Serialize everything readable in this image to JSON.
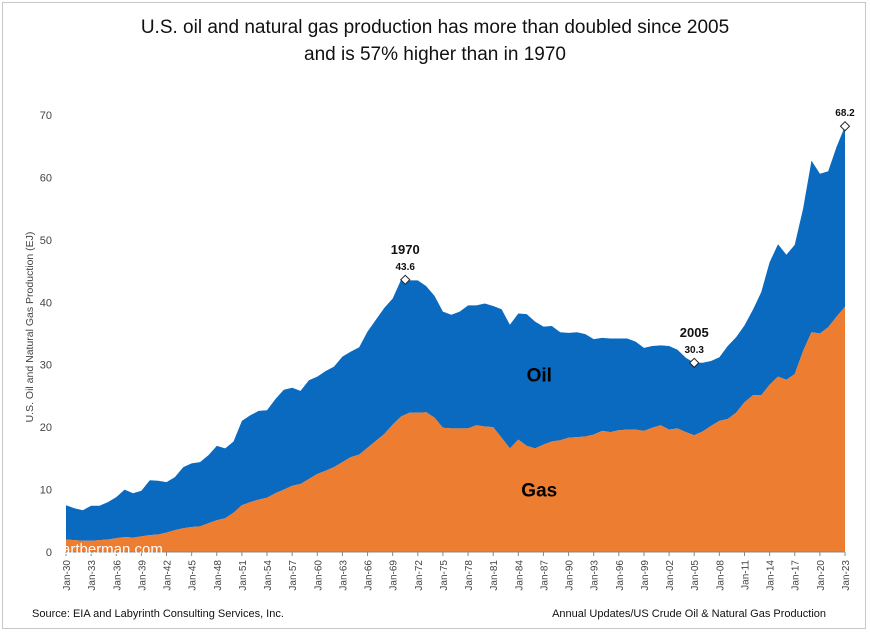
{
  "title_line1": "U.S. oil and natural gas production has more than doubled since 2005",
  "title_line2": "and is 57% higher than in 1970",
  "source": "Source: EIA and Labyrinth Consulting Services, Inc.",
  "footer_right": "Annual Updates/US Crude Oil & Natural Gas Production",
  "watermark": "artberman.com",
  "chart_data": {
    "type": "area",
    "ylabel": "U.S. Oil and Natural Gas Production (EJ)",
    "ylim": [
      0,
      70
    ],
    "yticks": [
      0,
      10,
      20,
      30,
      40,
      50,
      60,
      70
    ],
    "grid": false,
    "xticks": [
      "Jan-30",
      "Jan-33",
      "Jan-36",
      "Jan-39",
      "Jan-42",
      "Jan-45",
      "Jan-48",
      "Jan-51",
      "Jan-54",
      "Jan-57",
      "Jan-60",
      "Jan-63",
      "Jan-66",
      "Jan-69",
      "Jan-72",
      "Jan-75",
      "Jan-78",
      "Jan-81",
      "Jan-84",
      "Jan-87",
      "Jan-90",
      "Jan-93",
      "Jan-96",
      "Jan-99",
      "Jan-02",
      "Jan-05",
      "Jan-08",
      "Jan-11",
      "Jan-14",
      "Jan-17",
      "Jan-20",
      "Jan-23"
    ],
    "x": [
      1930,
      1931,
      1932,
      1933,
      1934,
      1935,
      1936,
      1937,
      1938,
      1939,
      1940,
      1941,
      1942,
      1943,
      1944,
      1945,
      1946,
      1947,
      1948,
      1949,
      1950,
      1951,
      1952,
      1953,
      1954,
      1955,
      1956,
      1957,
      1958,
      1959,
      1960,
      1961,
      1962,
      1963,
      1964,
      1965,
      1966,
      1967,
      1968,
      1969,
      1970,
      1971,
      1972,
      1973,
      1974,
      1975,
      1976,
      1977,
      1978,
      1979,
      1980,
      1981,
      1982,
      1983,
      1984,
      1985,
      1986,
      1987,
      1988,
      1989,
      1990,
      1991,
      1992,
      1993,
      1994,
      1995,
      1996,
      1997,
      1998,
      1999,
      2000,
      2001,
      2002,
      2003,
      2004,
      2005,
      2006,
      2007,
      2008,
      2009,
      2010,
      2011,
      2012,
      2013,
      2014,
      2015,
      2016,
      2017,
      2018,
      2019,
      2020,
      2021,
      2022,
      2023
    ],
    "series": [
      {
        "name": "Gas",
        "color": "#ED7D31",
        "values": [
          2.0,
          1.9,
          1.8,
          1.8,
          1.9,
          2.0,
          2.2,
          2.4,
          2.3,
          2.5,
          2.7,
          2.8,
          3.1,
          3.5,
          3.8,
          4.0,
          4.1,
          4.6,
          5.1,
          5.4,
          6.3,
          7.5,
          8.0,
          8.4,
          8.7,
          9.4,
          10.0,
          10.6,
          10.9,
          11.7,
          12.5,
          13.0,
          13.6,
          14.4,
          15.2,
          15.6,
          16.7,
          17.8,
          18.9,
          20.4,
          21.7,
          22.3,
          22.3,
          22.4,
          21.5,
          19.9,
          19.8,
          19.8,
          19.8,
          20.3,
          20.1,
          20.0,
          18.3,
          16.6,
          18.0,
          17.0,
          16.6,
          17.2,
          17.7,
          17.9,
          18.3,
          18.4,
          18.5,
          18.8,
          19.4,
          19.2,
          19.5,
          19.6,
          19.6,
          19.4,
          19.9,
          20.3,
          19.6,
          19.8,
          19.2,
          18.7,
          19.3,
          20.2,
          21.0,
          21.3,
          22.3,
          24.0,
          25.1,
          25.1,
          26.8,
          28.1,
          27.6,
          28.5,
          32.2,
          35.2,
          35.0,
          36.0,
          37.7,
          39.3
        ]
      },
      {
        "name": "Oil",
        "color": "#0A6AC0",
        "values": [
          5.5,
          5.1,
          4.9,
          5.6,
          5.5,
          6.0,
          6.6,
          7.6,
          7.1,
          7.3,
          8.8,
          8.6,
          8.1,
          8.5,
          9.8,
          10.2,
          10.3,
          10.9,
          11.9,
          11.2,
          11.4,
          13.5,
          13.9,
          14.2,
          14.0,
          15.1,
          16.0,
          15.7,
          14.9,
          15.8,
          15.6,
          16.0,
          16.1,
          16.9,
          16.9,
          17.2,
          18.6,
          19.4,
          20.2,
          20.2,
          21.9,
          21.2,
          21.2,
          20.2,
          19.5,
          18.6,
          18.2,
          18.7,
          19.7,
          19.2,
          19.7,
          19.4,
          20.6,
          19.8,
          20.2,
          21.1,
          20.3,
          18.9,
          18.5,
          17.3,
          16.8,
          16.8,
          16.4,
          15.3,
          14.9,
          15.0,
          14.7,
          14.6,
          14.1,
          13.3,
          13.1,
          12.8,
          13.4,
          12.6,
          11.9,
          11.6,
          11.0,
          10.4,
          10.2,
          11.7,
          12.1,
          12.3,
          13.7,
          16.5,
          19.6,
          21.2,
          20.0,
          20.7,
          22.8,
          27.5,
          25.6,
          25.0,
          27.2,
          28.9
        ]
      }
    ],
    "annotations": [
      {
        "label": "1970",
        "value": "43.6",
        "x": 1970.5,
        "y": 43.6
      },
      {
        "label": "2005",
        "value": "30.3",
        "x": 2005,
        "y": 30.3
      },
      {
        "label": "",
        "value": "68.2",
        "x": 2023,
        "y": 68.2
      }
    ],
    "area_labels": [
      {
        "text": "Oil",
        "x": 1986.5,
        "y": 27.3
      },
      {
        "text": "Gas",
        "x": 1986.5,
        "y": 8.9
      }
    ]
  }
}
